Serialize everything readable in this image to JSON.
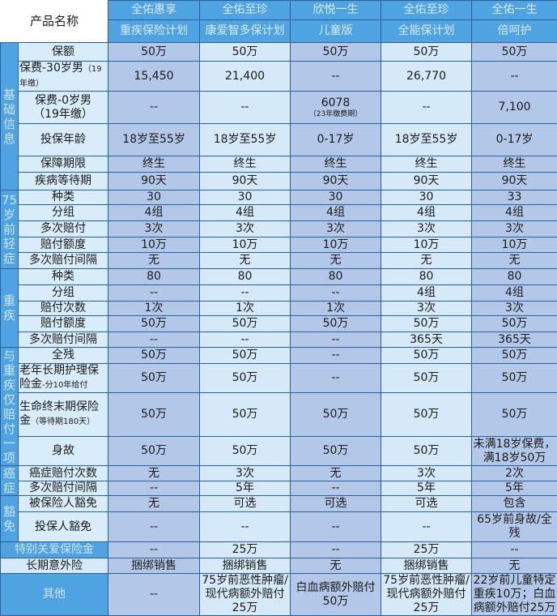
{
  "corner_label": "产品名称",
  "products": [
    {
      "name": "全佑惠享",
      "sub": "重疾保险计划"
    },
    {
      "name": "全佑至珍",
      "sub": "康爱智多保计划"
    },
    {
      "name": "欣悦一生",
      "sub": "儿童版"
    },
    {
      "name": "全佑至珍",
      "sub": "全能保计划"
    },
    {
      "name": "全佑一生",
      "sub": "倍呵护"
    }
  ],
  "sections": [
    {
      "label": "基础信息",
      "rows": [
        {
          "label": "保额",
          "values": [
            "50万",
            "50万",
            "50万",
            "50万",
            "50万"
          ]
        },
        {
          "label": "保费-30岁男",
          "note": "（19年缴）",
          "values": [
            "15,450",
            "21,400",
            "--",
            "26,770",
            "--"
          ]
        },
        {
          "label": "保费-0岁男",
          "note": "（19年缴）",
          "values": [
            "--",
            "--",
            "6078",
            "--",
            "7,100"
          ],
          "value_notes": [
            "",
            "",
            "（23年缴费期）",
            "",
            ""
          ]
        },
        {
          "label": "投保年龄",
          "values": [
            "18岁至55岁",
            "18岁至55岁",
            "0-17岁",
            "18岁至55岁",
            "0-17岁"
          ]
        },
        {
          "label": "保障期限",
          "values": [
            "终生",
            "终生",
            "终生",
            "终生",
            "终生"
          ]
        },
        {
          "label": "疾病等待期",
          "values": [
            "90天",
            "90天",
            "90天",
            "90天",
            "90天"
          ]
        }
      ]
    },
    {
      "label": "75岁前轻症",
      "rows": [
        {
          "label": "种类",
          "values": [
            "30",
            "30",
            "30",
            "30",
            "33"
          ]
        },
        {
          "label": "分组",
          "values": [
            "4组",
            "4组",
            "4组",
            "4组",
            "4组"
          ]
        },
        {
          "label": "多次赔付",
          "values": [
            "3次",
            "3次",
            "3次",
            "3次",
            "3次"
          ]
        },
        {
          "label": "赔付额度",
          "values": [
            "10万",
            "10万",
            "10万",
            "10万",
            "10万"
          ]
        },
        {
          "label": "多次赔付间隔",
          "values": [
            "无",
            "无",
            "无",
            "无",
            "无"
          ]
        }
      ]
    },
    {
      "label": "重疾",
      "rows": [
        {
          "label": "种类",
          "values": [
            "80",
            "80",
            "80",
            "80",
            "80"
          ]
        },
        {
          "label": "分组",
          "values": [
            "--",
            "--",
            "--",
            "4组",
            "4组"
          ]
        },
        {
          "label": "赔付次数",
          "values": [
            "1次",
            "1次",
            "1次",
            "3次",
            "3次"
          ]
        },
        {
          "label": "赔付额度",
          "values": [
            "50万",
            "50万",
            "50万",
            "50万",
            "50万"
          ]
        },
        {
          "label": "多次赔付间隔",
          "values": [
            "--",
            "--",
            "--",
            "365天",
            "365天"
          ]
        }
      ]
    },
    {
      "label": "与重疾仅赔付一项",
      "rows": [
        {
          "label": "全残",
          "values": [
            "50万",
            "50万",
            "--",
            "50万",
            "50万"
          ]
        },
        {
          "label": "老年长期护理保险金",
          "note": "-分10年给付",
          "values": [
            "50万",
            "50万",
            "--",
            "50万",
            "50万"
          ]
        },
        {
          "label": "生命终末期保险金",
          "note": "（等待期180天）",
          "values": [
            "50万",
            "50万",
            "50万",
            "50万",
            "50万"
          ]
        },
        {
          "label": "身故",
          "values": [
            "50万",
            "50万",
            "50万",
            "50万",
            "未满18岁保费，满18岁50万"
          ]
        }
      ]
    },
    {
      "label": "癌症",
      "rows": [
        {
          "label": "癌症赔付次数",
          "values": [
            "无",
            "3次",
            "无",
            "3次",
            "2次"
          ]
        },
        {
          "label": "多次赔付间隔",
          "values": [
            "--",
            "5年",
            "--",
            "5年",
            "5年"
          ]
        }
      ]
    },
    {
      "label": "豁免",
      "rows": [
        {
          "label": "被保险人豁免",
          "values": [
            "无",
            "可选",
            "可选",
            "可选",
            "包含"
          ]
        },
        {
          "label": "投保人豁免",
          "values": [
            "--",
            "--",
            "--",
            "--",
            "65岁前身故/全残"
          ]
        }
      ]
    }
  ],
  "merged_rows": [
    {
      "label": "特别关爱保险金",
      "style": "blue",
      "values": [
        "--",
        "25万",
        "--",
        "25万",
        "--"
      ]
    },
    {
      "label": "长期意外险",
      "style": "light",
      "values": [
        "捆绑销售",
        "捆绑销售",
        "无",
        "捆绑销售",
        "无"
      ]
    },
    {
      "label": "其他",
      "style": "blue",
      "values": [
        "--",
        "75岁前恶性肿瘤/现代病额外赔付25万",
        "白血病额外赔付50万",
        "75岁前恶性肿瘤/现代病额外赔付25万",
        "22岁前儿童特定重疾10万；白血病额外赔付25万"
      ]
    }
  ]
}
